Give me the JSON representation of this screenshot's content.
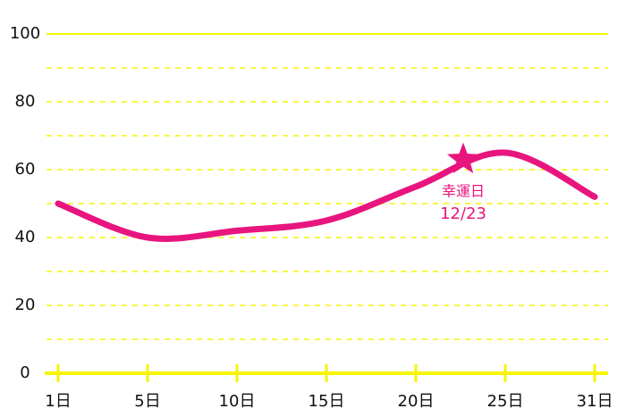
{
  "chart_data": {
    "type": "line",
    "categories": [
      "1日",
      "5日",
      "10日",
      "15日",
      "20日",
      "25日",
      "31日"
    ],
    "series": [
      {
        "color": "#e8157f",
        "values": [
          50,
          40,
          42,
          45,
          55,
          65,
          52
        ]
      }
    ],
    "ylim": [
      0,
      100
    ],
    "yticks": [
      0,
      20,
      40,
      60,
      80,
      100
    ],
    "minor_yticks": [
      10,
      30,
      50,
      70,
      90
    ],
    "grid": true,
    "grid_color": "#f5f500",
    "annotation": {
      "label": "幸運日",
      "date": "12/23",
      "value": 63
    }
  }
}
